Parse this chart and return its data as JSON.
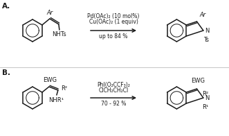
{
  "bg_color": "#ffffff",
  "line_color": "#1a1a1a",
  "line_width": 1.1,
  "label_A": "A.",
  "label_B": "B.",
  "reaction_A": {
    "reagents_line1": "Pd(OAc)₂ (10 mol%)",
    "reagents_line2": "Cu(OAc)₂ (1 equiv)",
    "yield": "up to 84 %",
    "substrate_labels": [
      "Ar",
      "NHTs"
    ],
    "product_labels": [
      "Ar",
      "Ts"
    ]
  },
  "reaction_B": {
    "reagents_line1": "PhI(O₂CCF₃)₂",
    "reagents_line2": "ClCH₂CH₂Cl",
    "yield": "70 - 92 %",
    "substrate_labels": [
      "EWG",
      "R²",
      "NHR¹"
    ],
    "product_labels": [
      "EWG",
      "R²",
      "R¹"
    ]
  },
  "font_size_label": 7.5,
  "font_size_text": 6.0,
  "font_size_small": 5.5,
  "font_size_subscript": 5.0
}
